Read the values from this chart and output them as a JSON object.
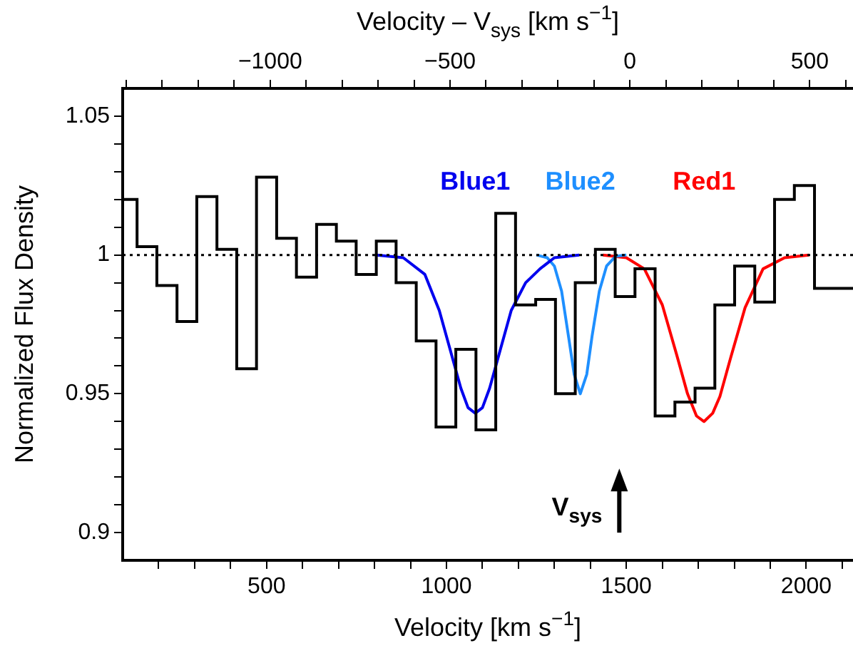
{
  "chart_data": {
    "type": "step",
    "xlabel": "Velocity [km s$^{−1}$]",
    "ylabel": "Normalized Flux Density",
    "x2label": "Velocity – V$_{sys}$ [km s$^{−1}$]",
    "xlim": [
      100,
      2130
    ],
    "x2lim": [
      -1410,
      620
    ],
    "ylim": [
      0.89,
      1.06
    ],
    "xticks": [
      {
        "value": 200,
        "label": null
      },
      {
        "value": 300,
        "label": null
      },
      {
        "value": 400,
        "label": null
      },
      500,
      {
        "value": 600,
        "label": null
      },
      {
        "value": 700,
        "label": null
      },
      {
        "value": 800,
        "label": null
      },
      {
        "value": 900,
        "label": null
      },
      1000,
      {
        "value": 1100,
        "label": null
      },
      {
        "value": 1200,
        "label": null
      },
      {
        "value": 1300,
        "label": null
      },
      {
        "value": 1400,
        "label": null
      },
      1500,
      {
        "value": 1600,
        "label": null
      },
      {
        "value": 1700,
        "label": null
      },
      {
        "value": 1800,
        "label": null
      },
      {
        "value": 1900,
        "label": null
      },
      2000,
      {
        "value": 2100,
        "label": null
      }
    ],
    "x2ticks": [
      {
        "value": -1400,
        "label": null
      },
      {
        "value": -1300,
        "label": null
      },
      {
        "value": -1200,
        "label": null
      },
      {
        "value": -1100,
        "label": null
      },
      {
        "value": -1000,
        "label": "−1000"
      },
      {
        "value": -900,
        "label": null
      },
      {
        "value": -800,
        "label": null
      },
      {
        "value": -700,
        "label": null
      },
      {
        "value": -600,
        "label": null
      },
      {
        "value": -500,
        "label": "−500"
      },
      {
        "value": -400,
        "label": null
      },
      {
        "value": -300,
        "label": null
      },
      {
        "value": -200,
        "label": null
      },
      {
        "value": -100,
        "label": null
      },
      0,
      {
        "value": 100,
        "label": null
      },
      {
        "value": 200,
        "label": null
      },
      {
        "value": 300,
        "label": null
      },
      {
        "value": 400,
        "label": null
      },
      500,
      {
        "value": 600,
        "label": null
      }
    ],
    "yticks": [
      0.9,
      {
        "value": 0.91,
        "label": null
      },
      {
        "value": 0.92,
        "label": null
      },
      {
        "value": 0.93,
        "label": null
      },
      {
        "value": 0.94,
        "label": null
      },
      0.95,
      {
        "value": 0.96,
        "label": null
      },
      {
        "value": 0.97,
        "label": null
      },
      {
        "value": 0.98,
        "label": null
      },
      {
        "value": 0.99,
        "label": null
      },
      1,
      {
        "value": 1.01,
        "label": null
      },
      {
        "value": 1.02,
        "label": null
      },
      {
        "value": 1.03,
        "label": null
      },
      {
        "value": 1.04,
        "label": null
      },
      1.05
    ],
    "series": [
      {
        "color": "#000000",
        "x": [
          100,
          140,
          195,
          251,
          306,
          362,
          417,
          472,
          528,
          583,
          639,
          694,
          749,
          805,
          860,
          916,
          971,
          1026,
          1082,
          1137,
          1192,
          1248,
          1303,
          1358,
          1414,
          1469,
          1524,
          1580,
          1635,
          1691,
          1746,
          1801,
          1857,
          1912,
          1967,
          2023,
          2078
        ],
        "values": [
          0.992,
          1.02,
          1.003,
          0.989,
          0.976,
          1.021,
          1.002,
          0.959,
          1.028,
          1.006,
          0.992,
          1.011,
          1.005,
          0.993,
          1.005,
          0.99,
          0.969,
          0.938,
          0.966,
          0.937,
          1.015,
          0.982,
          0.984,
          0.95,
          0.99,
          1.002,
          0.985,
          0.995,
          0.942,
          0.947,
          0.952,
          0.982,
          0.996,
          0.983,
          1.02,
          1.025,
          0.988
        ]
      },
      {
        "type": "line",
        "name": "Blue1",
        "color": "#0000ee",
        "x": [
          805,
          880,
          940,
          980,
          1010,
          1040,
          1060,
          1080,
          1100,
          1120,
          1150,
          1180,
          1220,
          1260,
          1300,
          1369
        ],
        "values": [
          1.0,
          0.999,
          0.993,
          0.98,
          0.966,
          0.952,
          0.945,
          0.943,
          0.945,
          0.952,
          0.966,
          0.98,
          0.99,
          0.995,
          0.999,
          1.0
        ]
      },
      {
        "type": "line",
        "name": "Blue2",
        "color": "#1e8fff",
        "x": [
          1250,
          1280,
          1300,
          1320,
          1340,
          1355,
          1372,
          1390,
          1405,
          1425,
          1445,
          1470,
          1500
        ],
        "values": [
          1.0,
          0.999,
          0.996,
          0.987,
          0.97,
          0.957,
          0.95,
          0.957,
          0.971,
          0.987,
          0.996,
          0.9995,
          1.0
        ]
      },
      {
        "type": "line",
        "name": "Red1",
        "color": "#ff0000",
        "x": [
          1435,
          1500,
          1550,
          1600,
          1640,
          1670,
          1695,
          1716,
          1740,
          1760,
          1790,
          1830,
          1880,
          1940,
          2008
        ],
        "values": [
          1.0,
          0.999,
          0.995,
          0.982,
          0.964,
          0.95,
          0.942,
          0.94,
          0.943,
          0.949,
          0.963,
          0.981,
          0.995,
          0.999,
          1.0
        ]
      }
    ],
    "ref_lines": [
      {
        "axis": "y",
        "value": 1,
        "color": "#000000",
        "line_style": "dotted"
      }
    ],
    "annotations": [
      "V$_{sys}$"
    ],
    "marker": "none",
    "line_style": "solid",
    "grid": false,
    "legend": false
  }
}
